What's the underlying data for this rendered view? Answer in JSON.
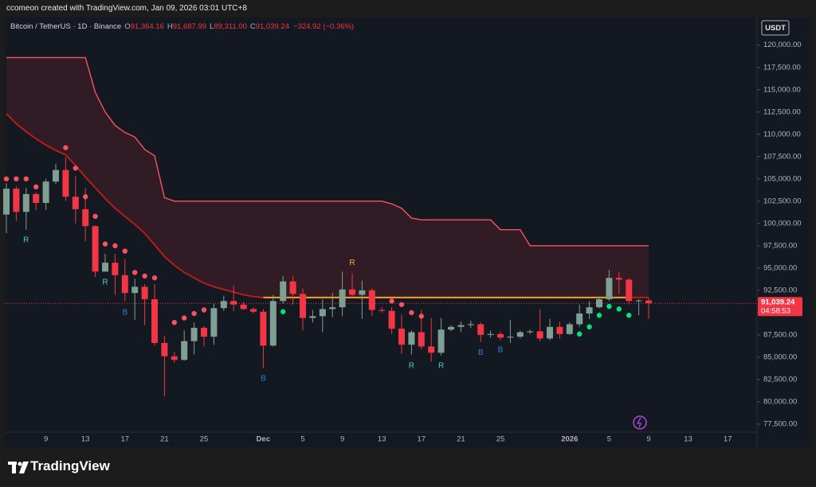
{
  "header": {
    "text": "ccomeon created with TradingView.com, Jan 09, 2026 03:01 UTC+8"
  },
  "chart_data": {
    "type": "candlestick",
    "symbol": "Bitcoin / TetherUS · 1D · Binance",
    "ohlc_legend": [
      {
        "key": "O",
        "value": "91,364.16"
      },
      {
        "key": "H",
        "value": "91,687.99"
      },
      {
        "key": "L",
        "value": "89,311.00"
      },
      {
        "key": "C",
        "value": "91,039.24"
      }
    ],
    "change": "−324.92 (−0.36%)",
    "currency": "USDT",
    "up_color": "#7f9f93",
    "down_color": "#f23645",
    "open": [
      101000,
      103900,
      101300,
      103300,
      102300,
      104700,
      106000,
      103000,
      101600,
      99700,
      94600,
      95600,
      94200,
      92200,
      92900,
      91500,
      86600,
      85100,
      84700,
      86800,
      88300,
      87300,
      90500,
      91300,
      90900,
      90400,
      90100,
      86300,
      91300,
      93500,
      92100,
      89400,
      89600,
      90400,
      90600,
      92600,
      92000,
      92500,
      90300,
      90200,
      88200,
      86400,
      87800,
      86200,
      85500,
      88100,
      88400,
      88600,
      88700,
      87500,
      87600,
      87200,
      87300,
      87800,
      87900,
      87100,
      88400,
      87600,
      88700,
      89900,
      90600,
      91500,
      93900,
      93700,
      91300,
      91364.16
    ],
    "high": [
      104500,
      104200,
      104000,
      103500,
      105000,
      106700,
      107400,
      105300,
      104000,
      99800,
      96600,
      96600,
      96000,
      93800,
      93200,
      93200,
      87400,
      85600,
      88000,
      88900,
      88500,
      91000,
      91900,
      93000,
      91200,
      90600,
      90400,
      92000,
      94100,
      94100,
      92700,
      90300,
      91500,
      92200,
      94600,
      94400,
      93600,
      92700,
      90600,
      90600,
      89800,
      88000,
      90300,
      89400,
      89400,
      88600,
      89000,
      89100,
      88900,
      88000,
      87900,
      89200,
      88000,
      88100,
      90400,
      89300,
      89000,
      88900,
      90900,
      91300,
      91800,
      94800,
      94600,
      93900,
      91500,
      91687.99
    ],
    "low": [
      98900,
      100300,
      99300,
      101500,
      101500,
      104400,
      102500,
      100000,
      98000,
      94000,
      94600,
      92000,
      91300,
      89200,
      88600,
      86300,
      80600,
      84400,
      84600,
      85300,
      86200,
      86400,
      90200,
      90200,
      90300,
      89900,
      83800,
      86200,
      91000,
      90900,
      88000,
      88900,
      87800,
      89500,
      89600,
      91600,
      89300,
      89600,
      90000,
      87600,
      85400,
      85300,
      85900,
      84500,
      85200,
      87900,
      87800,
      88300,
      86700,
      87200,
      86900,
      86600,
      87100,
      87600,
      86800,
      86900,
      87100,
      87500,
      88400,
      89300,
      90500,
      91300,
      92100,
      90900,
      89700,
      89311
    ],
    "close": [
      103900,
      101300,
      103300,
      102300,
      104700,
      106000,
      103000,
      101600,
      99700,
      94600,
      95600,
      94200,
      92200,
      92900,
      91500,
      86600,
      85100,
      84700,
      86800,
      88300,
      87300,
      90500,
      91300,
      90900,
      90400,
      90100,
      86300,
      91300,
      93500,
      92100,
      89400,
      89600,
      90400,
      90600,
      92600,
      92000,
      92500,
      90300,
      90200,
      88200,
      86400,
      87800,
      86200,
      85500,
      88100,
      88400,
      88600,
      88700,
      87500,
      87600,
      87200,
      87300,
      87800,
      87900,
      87100,
      88400,
      87600,
      88700,
      89900,
      90600,
      91500,
      93900,
      93700,
      91300,
      91364.16,
      91039.24
    ],
    "upper_band": {
      "color": "#f7525f",
      "values": [
        118600,
        118600,
        118600,
        118600,
        118600,
        118600,
        118600,
        118600,
        118600,
        114700,
        112500,
        111000,
        110200,
        109700,
        108300,
        107600,
        102900,
        102500,
        102500,
        102500,
        102500,
        102500,
        102500,
        102500,
        102500,
        102500,
        102500,
        102500,
        102500,
        102500,
        102500,
        102500,
        102500,
        102500,
        102500,
        102500,
        102500,
        102500,
        102500,
        102200,
        101700,
        100600,
        100400,
        100400,
        100400,
        100400,
        100400,
        100400,
        100400,
        100400,
        99300,
        99300,
        99300,
        97500,
        97500,
        97500,
        97500,
        97500,
        97500,
        97500,
        97500,
        97500,
        97500,
        97500,
        97500,
        97500
      ]
    },
    "ma": {
      "color": "#b71c1c",
      "values": [
        112300,
        111200,
        110300,
        109500,
        108800,
        108200,
        107700,
        106500,
        105200,
        104000,
        102800,
        101700,
        100800,
        99900,
        98900,
        97600,
        96300,
        95300,
        94500,
        93900,
        93300,
        92900,
        92600,
        92300,
        92000,
        91800,
        91700,
        91700,
        91700,
        91700,
        91700,
        91700,
        91700,
        91700,
        91700,
        91700,
        91700,
        91700,
        91700,
        91700,
        91700,
        91700,
        91700,
        91700,
        91700,
        91700,
        91700,
        91700,
        91700,
        91700,
        91700,
        91700,
        91700,
        91700,
        91700,
        91700,
        91700,
        91700,
        91700,
        91700,
        91700,
        91700,
        91700,
        91700,
        91700,
        91700
      ]
    },
    "band_fill": "#f2364522",
    "level": {
      "color": "#f0a020",
      "values": [
        null,
        null,
        null,
        null,
        null,
        null,
        null,
        null,
        null,
        null,
        null,
        null,
        null,
        null,
        null,
        null,
        null,
        null,
        null,
        null,
        null,
        null,
        null,
        null,
        null,
        null,
        91700,
        91700,
        91700,
        91700,
        91700,
        91700,
        91700,
        91700,
        91700,
        91700,
        91700,
        91700,
        91700,
        91700,
        91700,
        91700,
        91700,
        91700,
        91700,
        91700,
        91700,
        91700,
        91700,
        91700,
        91700,
        91700,
        91700,
        91700,
        91700,
        91700,
        91700,
        91700,
        91700,
        91700,
        91700,
        91700,
        91700,
        91700,
        null,
        null
      ]
    },
    "dots": [
      {
        "color": "#f7525f",
        "values": [
          105000,
          105000,
          105000,
          104100,
          null,
          null,
          108500,
          106200,
          103000,
          100800,
          97700,
          97500,
          96900,
          94500,
          94100,
          93900,
          null,
          88900,
          89400,
          89900,
          90300,
          null,
          null,
          null,
          null,
          null,
          null,
          null,
          null,
          null,
          null,
          null,
          null,
          null,
          null,
          null,
          null,
          null,
          null,
          91300,
          90900,
          90000,
          89600,
          null,
          null,
          null,
          null,
          null,
          null,
          null,
          null,
          null,
          null,
          null,
          null,
          null,
          null,
          null,
          null,
          null,
          null,
          null,
          null,
          null,
          null,
          null
        ]
      },
      {
        "color": "#00e676",
        "values": [
          null,
          null,
          null,
          null,
          null,
          null,
          null,
          null,
          null,
          null,
          null,
          null,
          null,
          null,
          null,
          null,
          null,
          null,
          null,
          null,
          null,
          null,
          null,
          null,
          null,
          null,
          null,
          null,
          90100,
          null,
          null,
          null,
          null,
          null,
          null,
          null,
          null,
          null,
          null,
          null,
          null,
          null,
          null,
          null,
          null,
          null,
          null,
          null,
          null,
          null,
          null,
          null,
          null,
          null,
          null,
          null,
          null,
          null,
          87600,
          88400,
          89700,
          90700,
          90400,
          89700,
          null,
          null
        ]
      }
    ],
    "signals": [
      {
        "label": "R",
        "x": 2,
        "value": 98100,
        "color": "#4dd0c4"
      },
      {
        "label": "R",
        "x": 10,
        "value": 93400,
        "color": "#4dd0c4"
      },
      {
        "label": "B",
        "x": 12,
        "value": 90000,
        "color": "#2f7fd8"
      },
      {
        "label": "B",
        "x": 26,
        "value": 82600,
        "color": "#2f7fd8"
      },
      {
        "label": "R",
        "x": 35,
        "value": 95600,
        "color": "#f0b030"
      },
      {
        "label": "R",
        "x": 41,
        "value": 84000,
        "color": "#4dd0c4"
      },
      {
        "label": "R",
        "x": 44,
        "value": 84000,
        "color": "#4dd0c4"
      },
      {
        "label": "B",
        "x": 48,
        "value": 85500,
        "color": "#2f7fd8"
      },
      {
        "label": "B",
        "x": 50,
        "value": 85800,
        "color": "#2f7fd8"
      }
    ],
    "xticks": [
      {
        "value": 4,
        "label": "9"
      },
      {
        "value": 8,
        "label": "13"
      },
      {
        "value": 12,
        "label": "17"
      },
      {
        "value": 16,
        "label": "21"
      },
      {
        "value": 20,
        "label": "25"
      },
      {
        "value": 26,
        "label": "Dec"
      },
      {
        "value": 30,
        "label": "5"
      },
      {
        "value": 34,
        "label": "9"
      },
      {
        "value": 38,
        "label": "13"
      },
      {
        "value": 42,
        "label": "17"
      },
      {
        "value": 46,
        "label": "21"
      },
      {
        "value": 50,
        "label": "25"
      },
      {
        "value": 57,
        "label": "2026"
      },
      {
        "value": 61,
        "label": "5"
      },
      {
        "value": 65,
        "label": "9"
      },
      {
        "value": 69,
        "label": "13"
      },
      {
        "value": 73,
        "label": "17"
      }
    ],
    "ylim": [
      76600,
      123100
    ],
    "yticks": [
      {
        "value": 77500,
        "label": "77,500.00"
      },
      {
        "value": 80000,
        "label": "80,000.00"
      },
      {
        "value": 82500,
        "label": "82,500.00"
      },
      {
        "value": 85000,
        "label": "85,000.00"
      },
      {
        "value": 87500,
        "label": "87,500.00"
      },
      {
        "value": 90000,
        "label": "90,000.00"
      },
      {
        "value": 92500,
        "label": "92,500.00"
      },
      {
        "value": 95000,
        "label": "95,000.00"
      },
      {
        "value": 97500,
        "label": "97,500.00"
      },
      {
        "value": 100000,
        "label": "100,000.00"
      },
      {
        "value": 102500,
        "label": "102,500.00"
      },
      {
        "value": 105000,
        "label": "105,000.00"
      },
      {
        "value": 107500,
        "label": "107,500.00"
      },
      {
        "value": 110000,
        "label": "110,000.00"
      },
      {
        "value": 112500,
        "label": "112,500.00"
      },
      {
        "value": 115000,
        "label": "115,000.00"
      },
      {
        "value": 117500,
        "label": "117,500.00"
      },
      {
        "value": 120000,
        "label": "120,000.00"
      }
    ],
    "last_price": {
      "value": 91039.24,
      "label": "91,039.24"
    },
    "countdown": "04:58:53"
  },
  "footer": {
    "brand": "TradingView"
  }
}
